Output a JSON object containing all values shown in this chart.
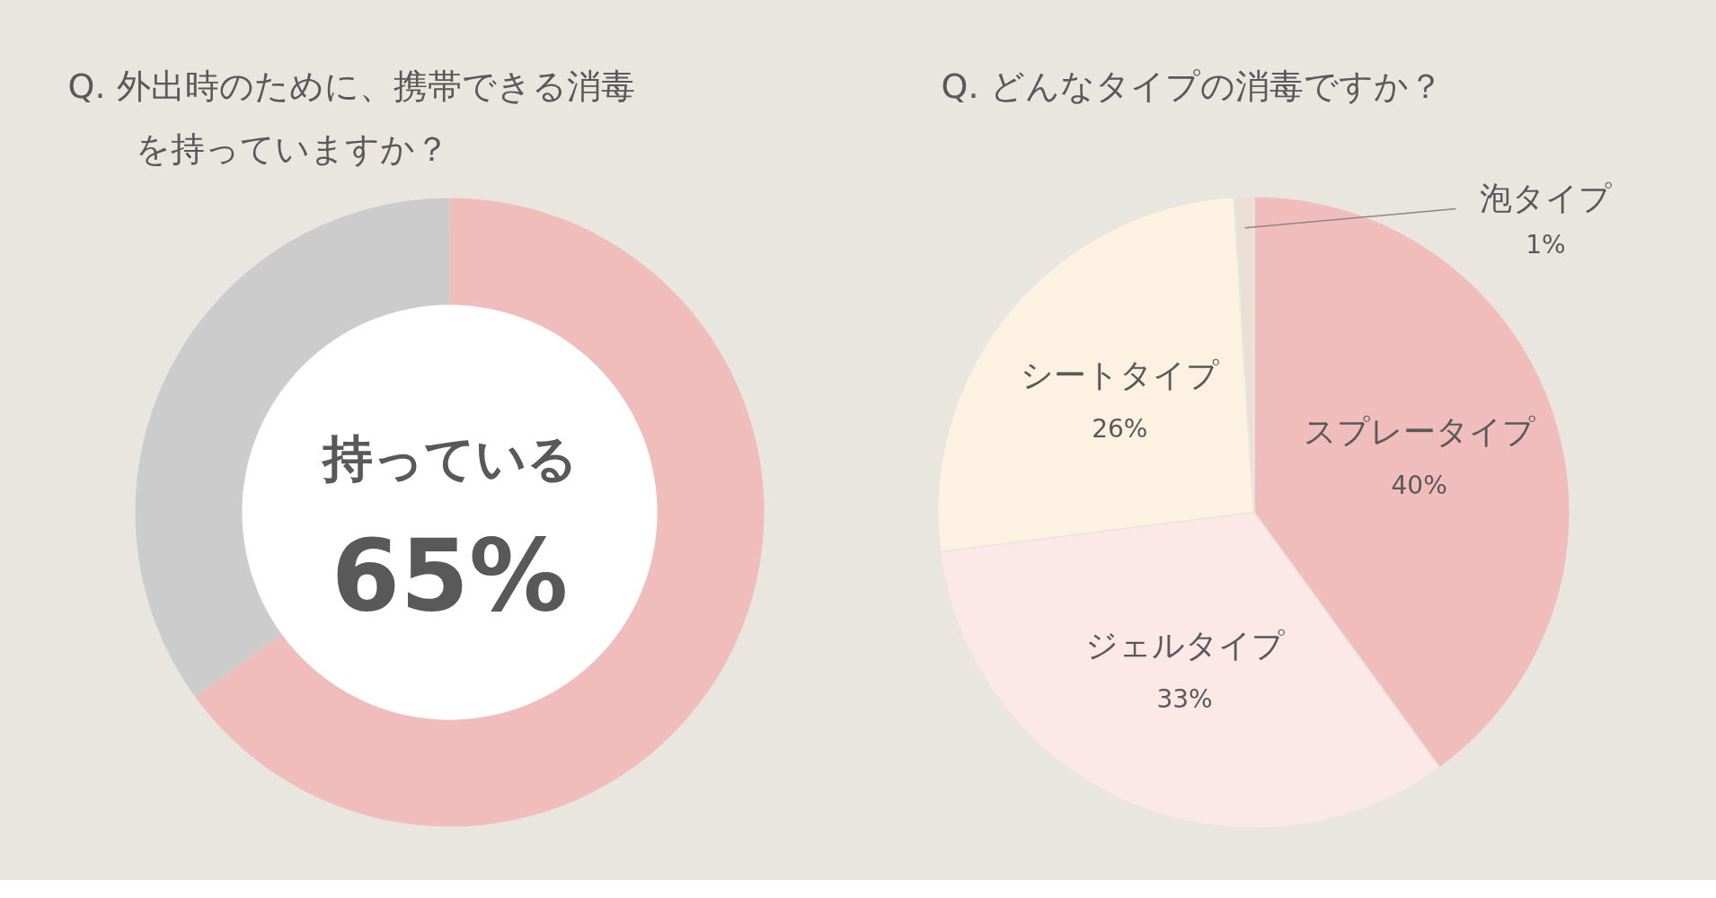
{
  "chart_data": [
    {
      "type": "donut",
      "title": "Q. 外出時のために、携帯できる消毒を持っていますか？",
      "categories": [
        "持っている",
        null
      ],
      "values": [
        65,
        35
      ],
      "colors": [
        "#f0bcbc",
        "#cccccc"
      ],
      "value_labels": [
        "65%",
        null
      ]
    },
    {
      "type": "pie",
      "title": "Q. どんなタイプの消毒ですか？",
      "categories": [
        "スプレータイプ",
        "ジェルタイプ",
        "シートタイプ",
        "泡タイプ"
      ],
      "values": [
        40,
        33,
        26,
        1
      ],
      "colors": [
        "#f0bcbc",
        "#fde8e8",
        "#fdf1e1",
        "#eadfd2"
      ],
      "value_labels": [
        "40%",
        "33%",
        "26%",
        "1%"
      ]
    }
  ]
}
